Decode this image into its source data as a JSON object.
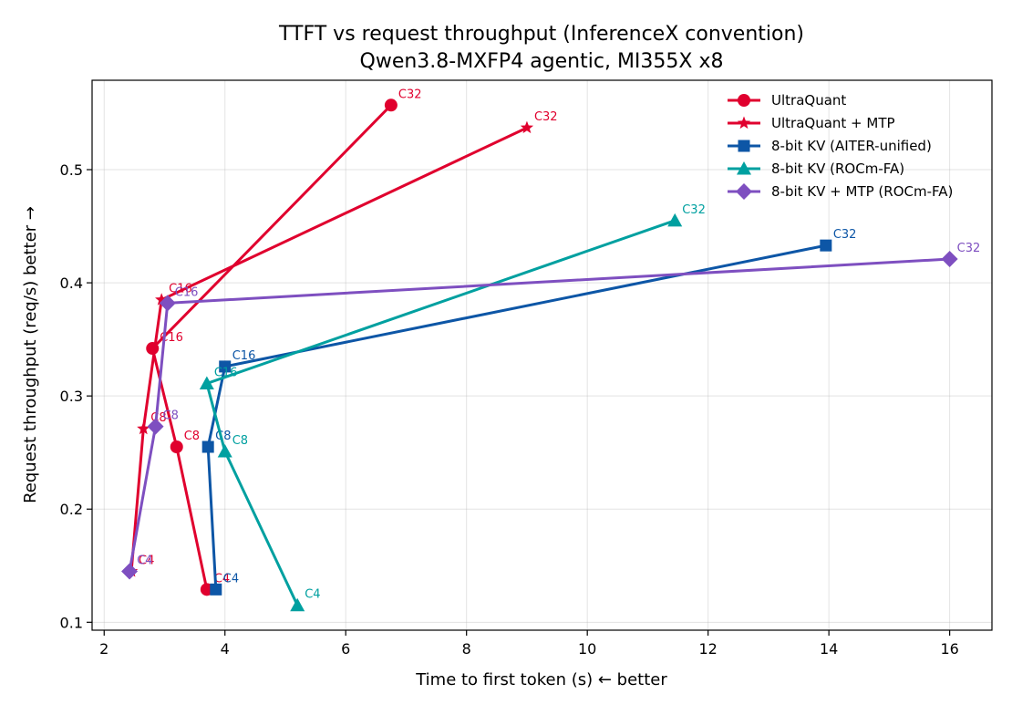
{
  "chart_data": {
    "type": "line",
    "title": "TTFT vs request throughput (InferenceX convention)",
    "subtitle": "Qwen3.8-MXFP4 agentic, MI355X x8",
    "xlabel": "Time to first token (s)  ← better",
    "ylabel": "Request throughput (req/s)  better →",
    "xlim": [
      1.8,
      16.7
    ],
    "ylim": [
      0.093,
      0.579
    ],
    "xticks": [
      2,
      4,
      6,
      8,
      10,
      12,
      14,
      16
    ],
    "yticks": [
      0.1,
      0.2,
      0.3,
      0.4,
      0.5
    ],
    "xtick_labels": [
      "2",
      "4",
      "6",
      "8",
      "10",
      "12",
      "14",
      "16"
    ],
    "ytick_labels": [
      "0.1",
      "0.2",
      "0.3",
      "0.4",
      "0.5"
    ],
    "grid": true,
    "legend_position": "top-right",
    "series": [
      {
        "name": "UltraQuant",
        "color": "#e0002e",
        "marker": "circle",
        "points": [
          {
            "x": 3.7,
            "y": 0.129,
            "label": "C4"
          },
          {
            "x": 3.2,
            "y": 0.255,
            "label": "C8"
          },
          {
            "x": 2.8,
            "y": 0.342,
            "label": "C16"
          },
          {
            "x": 6.75,
            "y": 0.557,
            "label": "C32"
          }
        ]
      },
      {
        "name": "UltraQuant + MTP",
        "color": "#e0002e",
        "marker": "star",
        "points": [
          {
            "x": 2.45,
            "y": 0.145,
            "label": "C4"
          },
          {
            "x": 2.65,
            "y": 0.271,
            "label": "C8"
          },
          {
            "x": 2.95,
            "y": 0.385,
            "label": "C16"
          },
          {
            "x": 9.0,
            "y": 0.537,
            "label": "C32"
          }
        ]
      },
      {
        "name": "8-bit KV (AITER-unified)",
        "color": "#0d56a6",
        "marker": "square",
        "points": [
          {
            "x": 3.85,
            "y": 0.129,
            "label": "C4"
          },
          {
            "x": 3.72,
            "y": 0.255,
            "label": "C8"
          },
          {
            "x": 4.0,
            "y": 0.326,
            "label": "C16"
          },
          {
            "x": 13.95,
            "y": 0.433,
            "label": "C32"
          }
        ]
      },
      {
        "name": "8-bit KV (ROCm-FA)",
        "color": "#00a0a0",
        "marker": "triangle",
        "points": [
          {
            "x": 5.2,
            "y": 0.115,
            "label": "C4"
          },
          {
            "x": 4.0,
            "y": 0.251,
            "label": "C8"
          },
          {
            "x": 3.7,
            "y": 0.311,
            "label": "C16"
          },
          {
            "x": 11.45,
            "y": 0.455,
            "label": "C32"
          }
        ]
      },
      {
        "name": "8-bit KV + MTP (ROCm-FA)",
        "color": "#7e4fc0",
        "marker": "diamond",
        "points": [
          {
            "x": 2.42,
            "y": 0.145,
            "label": "C4"
          },
          {
            "x": 2.85,
            "y": 0.273,
            "label": "C8"
          },
          {
            "x": 3.05,
            "y": 0.382,
            "label": "C16"
          },
          {
            "x": 16.0,
            "y": 0.421,
            "label": "C32"
          }
        ]
      }
    ]
  }
}
